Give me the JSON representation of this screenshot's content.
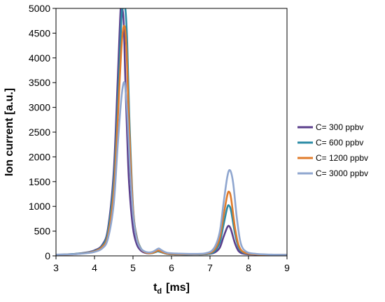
{
  "chart_data": {
    "type": "line",
    "xlabel_main": "t",
    "xlabel_sub": "d",
    "xlabel_unit": "[ms]",
    "ylabel": "Ion current  [a.u.]",
    "xlim": [
      3,
      9
    ],
    "ylim": [
      0,
      5000
    ],
    "xticks": [
      "3",
      "4",
      "5",
      "6",
      "7",
      "8",
      "9"
    ],
    "yticks": [
      "0",
      "500",
      "1000",
      "1500",
      "2000",
      "2500",
      "3000",
      "3500",
      "4000",
      "4500",
      "5000"
    ],
    "grid": false,
    "legend_position": "right",
    "series": [
      {
        "name": "C= 300 ppbv",
        "color": "#5b3f8c",
        "x": [
          3.0,
          3.5,
          3.8,
          4.0,
          4.2,
          4.35,
          4.5,
          4.6,
          4.68,
          4.72,
          4.76,
          4.8,
          4.85,
          4.9,
          5.0,
          5.1,
          5.2,
          5.3,
          5.4,
          5.5,
          5.6,
          5.65,
          5.75,
          5.9,
          6.2,
          6.6,
          6.9,
          7.1,
          7.25,
          7.35,
          7.45,
          7.5,
          7.55,
          7.65,
          7.75,
          7.9,
          8.2,
          8.6,
          9.0
        ],
        "y": [
          20,
          40,
          70,
          110,
          220,
          550,
          1700,
          3500,
          5000,
          5000,
          4700,
          3600,
          2400,
          1450,
          560,
          230,
          110,
          65,
          50,
          60,
          90,
          100,
          70,
          40,
          30,
          30,
          35,
          60,
          160,
          380,
          580,
          600,
          520,
          250,
          90,
          40,
          25,
          20,
          20
        ]
      },
      {
        "name": "C= 600 ppbv",
        "color": "#2b8ba6",
        "x": [
          3.0,
          3.5,
          3.8,
          4.0,
          4.2,
          4.35,
          4.5,
          4.6,
          4.7,
          4.74,
          4.8,
          4.85,
          4.9,
          5.0,
          5.1,
          5.2,
          5.3,
          5.4,
          5.5,
          5.6,
          5.65,
          5.75,
          5.9,
          6.2,
          6.6,
          6.9,
          7.1,
          7.25,
          7.35,
          7.45,
          7.5,
          7.55,
          7.65,
          7.75,
          7.9,
          8.2,
          8.6,
          9.0
        ],
        "y": [
          20,
          40,
          65,
          100,
          200,
          500,
          1500,
          3000,
          4800,
          5000,
          5000,
          4300,
          2900,
          1000,
          380,
          160,
          80,
          55,
          55,
          80,
          90,
          70,
          40,
          30,
          30,
          35,
          80,
          260,
          620,
          980,
          1010,
          900,
          450,
          160,
          55,
          30,
          20,
          20
        ]
      },
      {
        "name": "C= 1200 ppbv",
        "color": "#e07b2a",
        "x": [
          3.0,
          3.5,
          3.8,
          4.0,
          4.2,
          4.35,
          4.5,
          4.6,
          4.7,
          4.77,
          4.83,
          4.9,
          5.0,
          5.1,
          5.2,
          5.3,
          5.4,
          5.5,
          5.6,
          5.65,
          5.75,
          5.9,
          6.2,
          6.6,
          6.9,
          7.1,
          7.25,
          7.35,
          7.45,
          7.5,
          7.55,
          7.65,
          7.75,
          7.9,
          8.2,
          8.6,
          9.0
        ],
        "y": [
          20,
          35,
          60,
          90,
          180,
          420,
          1300,
          2700,
          4200,
          4650,
          4200,
          2600,
          950,
          360,
          150,
          80,
          55,
          60,
          90,
          110,
          80,
          45,
          35,
          35,
          45,
          110,
          350,
          800,
          1230,
          1290,
          1150,
          560,
          200,
          65,
          30,
          20,
          20
        ]
      },
      {
        "name": "C= 3000 ppbv",
        "color": "#8fa6cf",
        "x": [
          3.0,
          3.5,
          3.8,
          4.0,
          4.2,
          4.35,
          4.5,
          4.6,
          4.7,
          4.78,
          4.85,
          4.92,
          5.0,
          5.1,
          5.2,
          5.3,
          5.4,
          5.5,
          5.6,
          5.67,
          5.75,
          5.9,
          6.2,
          6.6,
          6.9,
          7.1,
          7.25,
          7.35,
          7.45,
          7.52,
          7.6,
          7.7,
          7.8,
          7.95,
          8.2,
          8.6,
          9.0
        ],
        "y": [
          25,
          35,
          55,
          80,
          150,
          350,
          1050,
          2200,
          3200,
          3500,
          2900,
          1800,
          850,
          330,
          150,
          90,
          70,
          80,
          120,
          150,
          110,
          60,
          45,
          40,
          55,
          150,
          470,
          1050,
          1600,
          1730,
          1480,
          750,
          250,
          80,
          40,
          25,
          20
        ]
      }
    ]
  }
}
